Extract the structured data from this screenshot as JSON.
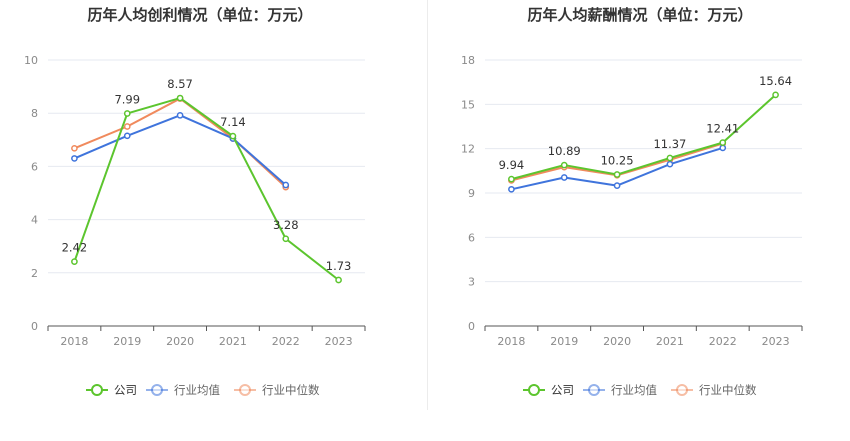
{
  "colors": {
    "company": "#5cc52e",
    "industry_avg": "#3f74dc",
    "industry_median": "#f08a5d",
    "grid": "#e6e9f0",
    "axis": "#555555",
    "tick_text": "#8a8a8a",
    "title": "#333333",
    "label": "#333333"
  },
  "chart_data": [
    {
      "type": "line",
      "title": "历年人均创利情况（单位：万元）",
      "categories": [
        "2018",
        "2019",
        "2020",
        "2021",
        "2022",
        "2023"
      ],
      "ylim": [
        0,
        10
      ],
      "yticks": [
        "0",
        "2",
        "4",
        "6",
        "8",
        "10"
      ],
      "grid": true,
      "legend_position": "bottom",
      "series": [
        {
          "name": "公司",
          "color_key": "company",
          "values": [
            2.42,
            7.99,
            8.57,
            7.14,
            3.28,
            1.73
          ],
          "labels": [
            "2.42",
            "7.99",
            "8.57",
            "7.14",
            "3.28",
            "1.73"
          ]
        },
        {
          "name": "行业均值",
          "color_key": "industry_avg",
          "values": [
            6.3,
            7.15,
            7.92,
            7.05,
            5.3,
            null
          ],
          "labels": []
        },
        {
          "name": "行业中位数",
          "color_key": "industry_median",
          "values": [
            6.68,
            7.5,
            8.55,
            7.05,
            5.22,
            null
          ],
          "labels": []
        }
      ]
    },
    {
      "type": "line",
      "title": "历年人均薪酬情况（单位：万元）",
      "categories": [
        "2018",
        "2019",
        "2020",
        "2021",
        "2022",
        "2023"
      ],
      "ylim": [
        0,
        18
      ],
      "yticks": [
        "0",
        "3",
        "6",
        "9",
        "12",
        "15",
        "18"
      ],
      "grid": true,
      "legend_position": "bottom",
      "series": [
        {
          "name": "公司",
          "color_key": "company",
          "values": [
            9.94,
            10.89,
            10.25,
            11.37,
            12.41,
            15.64
          ],
          "labels": [
            "9.94",
            "10.89",
            "10.25",
            "11.37",
            "12.41",
            "15.64"
          ]
        },
        {
          "name": "行业均值",
          "color_key": "industry_avg",
          "values": [
            9.25,
            10.05,
            9.5,
            10.95,
            12.05,
            null
          ],
          "labels": []
        },
        {
          "name": "行业中位数",
          "color_key": "industry_median",
          "values": [
            9.85,
            10.75,
            10.2,
            11.25,
            12.35,
            null
          ],
          "labels": []
        }
      ]
    }
  ]
}
